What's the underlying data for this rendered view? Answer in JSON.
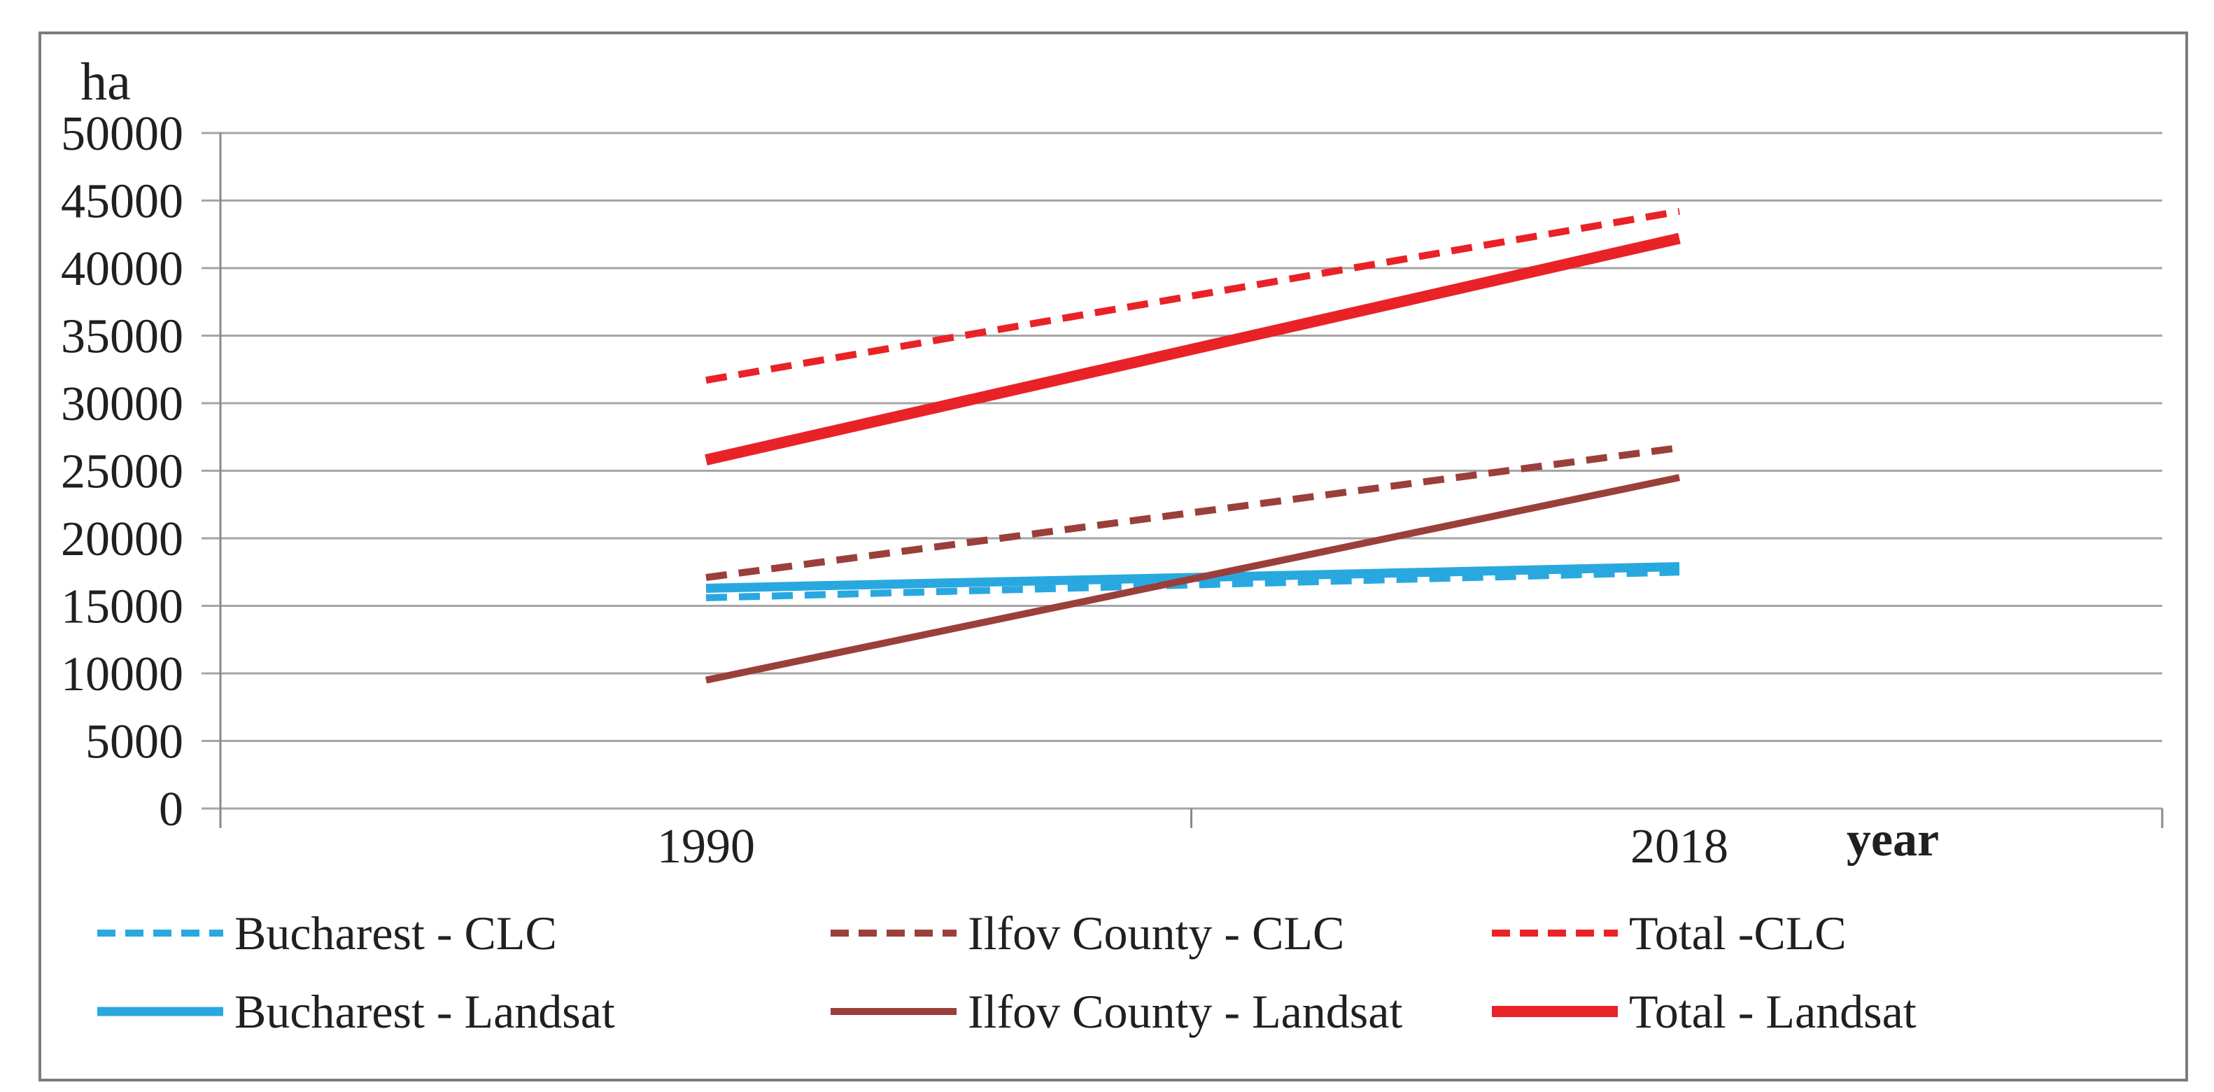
{
  "chart_data": {
    "type": "line",
    "ylabel": "ha",
    "xlabel": "year",
    "categories": [
      "1990",
      "2018"
    ],
    "ylim": [
      0,
      50000
    ],
    "ytick_step": 5000,
    "yticks": [
      0,
      5000,
      10000,
      15000,
      20000,
      25000,
      30000,
      35000,
      40000,
      45000,
      50000
    ],
    "grid": "horizontal",
    "legend_position": "bottom",
    "colors": {
      "grid": "#A5A5A5",
      "axis": "#8A8A8A",
      "text": "#202020",
      "frame_border": "#7C7C7C",
      "bucharest_blue": "#29A8E0",
      "ilfov_brown": "#9B3F3B",
      "total_red": "#E92227"
    },
    "series": [
      {
        "id": "bucharest-clc",
        "name": "Bucharest - CLC",
        "line_style": "dashed",
        "color": "#29A8E0",
        "stroke_width": 10,
        "values": [
          15600,
          17500
        ]
      },
      {
        "id": "bucharest-landsat",
        "name": "Bucharest - Landsat",
        "line_style": "solid",
        "color": "#29A8E0",
        "stroke_width": 13,
        "values": [
          16300,
          17900
        ]
      },
      {
        "id": "ilfov-county-clc",
        "name": "Ilfov County - CLC",
        "line_style": "dashed",
        "color": "#9B3F3B",
        "stroke_width": 10,
        "values": [
          17100,
          26700
        ]
      },
      {
        "id": "ilfov-county-landsat",
        "name": "Ilfov County - Landsat",
        "line_style": "solid",
        "color": "#9B3F3B",
        "stroke_width": 10,
        "values": [
          9500,
          24500
        ]
      },
      {
        "id": "total-clc",
        "name": "Total -CLC",
        "line_style": "dashed",
        "color": "#E92227",
        "stroke_width": 10,
        "values": [
          31700,
          44200
        ]
      },
      {
        "id": "total-landsat",
        "name": "Total - Landsat",
        "line_style": "solid",
        "color": "#E92227",
        "stroke_width": 16,
        "values": [
          25800,
          42200
        ]
      }
    ]
  }
}
